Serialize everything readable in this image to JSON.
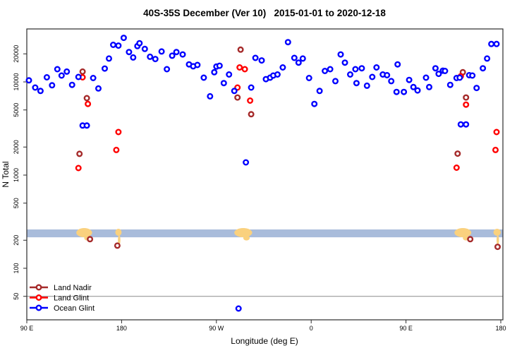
{
  "title": "40S-35S December (Ver 10)   2015-01-01 to 2020-12-18",
  "chart_data": {
    "type": "scatter",
    "title": "40S-35S December (Ver 10)   2015-01-01 to 2020-12-18",
    "xlabel": "Longitude (deg E)",
    "ylabel": "N Total",
    "x_axis": {
      "unit": "deg E (wrapped, 90E eastward to 180)",
      "range_deg": [
        90,
        540
      ],
      "ticks": [
        {
          "deg": 90,
          "label": "90 E"
        },
        {
          "deg": 180,
          "label": "180"
        },
        {
          "deg": 270,
          "label": "90 W"
        },
        {
          "deg": 360,
          "label": "0"
        },
        {
          "deg": 450,
          "label": "90 E"
        },
        {
          "deg": 540,
          "label": "180"
        }
      ]
    },
    "y_axis": {
      "scale": "log",
      "range": [
        28,
        37000
      ],
      "ticks": [
        {
          "value": 50,
          "label": "50"
        },
        {
          "value": 100,
          "label": "100"
        },
        {
          "value": 200,
          "label": "200"
        },
        {
          "value": 500,
          "label": "500"
        },
        {
          "value": 1000,
          "label": "1000"
        },
        {
          "value": 2000,
          "label": "2000"
        },
        {
          "value": 5000,
          "label": "5000"
        },
        {
          "value": 10000,
          "label": "10000"
        },
        {
          "value": 20000,
          "label": "20000"
        }
      ]
    },
    "gridline": {
      "n": 50,
      "color": "#8c8c8c"
    },
    "land_band": {
      "n_range": [
        215,
        261
      ],
      "band_color": "#a9bcdb",
      "land_color": "#fad17e",
      "land_segments": [
        {
          "deg": [
            137,
            152
          ],
          "shape": "wide",
          "name": "australia"
        },
        {
          "deg": [
            174,
            180
          ],
          "shape": "sliver",
          "name": "new-zealand"
        },
        {
          "deg": [
            287,
            304
          ],
          "shape": "wide",
          "name": "south-america"
        },
        {
          "deg": [
            496,
            512
          ],
          "shape": "wide",
          "name": "australia-wrap"
        },
        {
          "deg": [
            533,
            540
          ],
          "shape": "sliver",
          "name": "new-zealand-wrap"
        }
      ]
    },
    "series": [
      {
        "name": "Land Nadir",
        "color": "#a52a2a",
        "points": [
          [
            143,
            12900
          ],
          [
            147,
            6700
          ],
          [
            140,
            1690
          ],
          [
            150,
            205
          ],
          [
            176,
            175
          ],
          [
            290,
            6800
          ],
          [
            293,
            22200
          ],
          [
            303,
            4500
          ],
          [
            499,
            1700
          ],
          [
            504,
            12700
          ],
          [
            507,
            6800
          ],
          [
            511,
            205
          ],
          [
            537,
            170
          ]
        ]
      },
      {
        "name": "Land Glint",
        "color": "#ff0000",
        "points": [
          [
            143,
            11200
          ],
          [
            148,
            5800
          ],
          [
            139,
            1190
          ],
          [
            175,
            1860
          ],
          [
            177,
            2900
          ],
          [
            290,
            8700
          ],
          [
            292,
            14300
          ],
          [
            297,
            13700
          ],
          [
            302,
            6300
          ],
          [
            498,
            1200
          ],
          [
            502,
            11500
          ],
          [
            507,
            5700
          ],
          [
            535,
            1860
          ],
          [
            536,
            2900
          ]
        ]
      },
      {
        "name": "Ocean Glint",
        "color": "#0000ff",
        "points": [
          [
            92,
            10400
          ],
          [
            98,
            8700
          ],
          [
            103,
            8000
          ],
          [
            109,
            11200
          ],
          [
            114,
            9200
          ],
          [
            119,
            13700
          ],
          [
            123,
            11700
          ],
          [
            128,
            12900
          ],
          [
            133,
            9300
          ],
          [
            139,
            11300
          ],
          [
            143,
            3400
          ],
          [
            147,
            3400
          ],
          [
            153,
            11000
          ],
          [
            158,
            8500
          ],
          [
            164,
            13900
          ],
          [
            168,
            17800
          ],
          [
            172,
            25000
          ],
          [
            177,
            24500
          ],
          [
            182,
            29700
          ],
          [
            187,
            20900
          ],
          [
            191,
            18300
          ],
          [
            195,
            24200
          ],
          [
            197,
            26000
          ],
          [
            202,
            22600
          ],
          [
            207,
            18600
          ],
          [
            212,
            17600
          ],
          [
            218,
            21200
          ],
          [
            223,
            13700
          ],
          [
            228,
            19100
          ],
          [
            232,
            20900
          ],
          [
            238,
            19700
          ],
          [
            244,
            15400
          ],
          [
            248,
            14700
          ],
          [
            252,
            15200
          ],
          [
            258,
            11100
          ],
          [
            264,
            7000
          ],
          [
            268,
            12700
          ],
          [
            270,
            14600
          ],
          [
            273,
            14900
          ],
          [
            277,
            9700
          ],
          [
            282,
            12000
          ],
          [
            287,
            8000
          ],
          [
            291,
            37
          ],
          [
            298,
            1370
          ],
          [
            303,
            8700
          ],
          [
            307,
            18100
          ],
          [
            313,
            17000
          ],
          [
            317,
            10700
          ],
          [
            321,
            11100
          ],
          [
            324,
            11700
          ],
          [
            328,
            12000
          ],
          [
            333,
            14300
          ],
          [
            338,
            26700
          ],
          [
            344,
            18100
          ],
          [
            348,
            16100
          ],
          [
            352,
            17800
          ],
          [
            358,
            11000
          ],
          [
            363,
            5800
          ],
          [
            368,
            8000
          ],
          [
            373,
            13100
          ],
          [
            378,
            13700
          ],
          [
            383,
            10200
          ],
          [
            388,
            19700
          ],
          [
            392,
            16100
          ],
          [
            397,
            12000
          ],
          [
            402,
            13700
          ],
          [
            403,
            9700
          ],
          [
            408,
            14000
          ],
          [
            413,
            9100
          ],
          [
            418,
            11300
          ],
          [
            422,
            14300
          ],
          [
            428,
            12000
          ],
          [
            432,
            11800
          ],
          [
            436,
            10200
          ],
          [
            441,
            7800
          ],
          [
            442,
            15400
          ],
          [
            448,
            7800
          ],
          [
            453,
            10500
          ],
          [
            457,
            8800
          ],
          [
            461,
            8100
          ],
          [
            469,
            11100
          ],
          [
            472,
            8800
          ],
          [
            478,
            14000
          ],
          [
            481,
            12200
          ],
          [
            485,
            13200
          ],
          [
            487,
            13100
          ],
          [
            492,
            9300
          ],
          [
            498,
            11000
          ],
          [
            501,
            11100
          ],
          [
            502,
            3500
          ],
          [
            507,
            3500
          ],
          [
            510,
            11800
          ],
          [
            513,
            11700
          ],
          [
            517,
            8600
          ],
          [
            523,
            14000
          ],
          [
            527,
            17800
          ],
          [
            531,
            25500
          ],
          [
            536,
            25500
          ]
        ]
      }
    ],
    "legend_position": "bottom-left"
  },
  "legend": {
    "items": [
      {
        "label": "Land Nadir",
        "color": "#a52a2a"
      },
      {
        "label": "Land Glint",
        "color": "#ff0000"
      },
      {
        "label": "Ocean Glint",
        "color": "#0000ff"
      }
    ]
  },
  "colors": {
    "background": "#ffffff",
    "plot_border": "#2b2b2b",
    "band": "#a9bcdb",
    "land": "#fad17e",
    "gridline": "#8c8c8c"
  }
}
